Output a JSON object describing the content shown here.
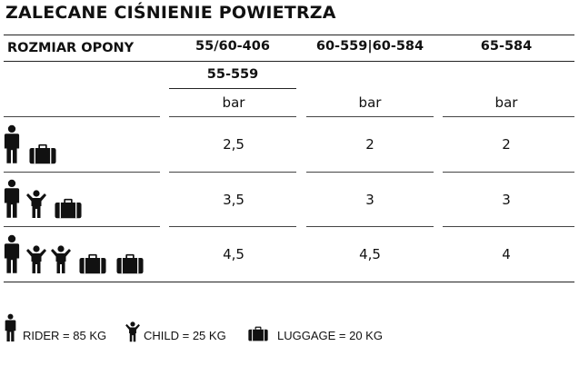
{
  "title": "ZALECANE CIŚNIENIE POWIETRZA",
  "headers": {
    "size": "ROZMIAR OPONY",
    "col1": "55/60-406",
    "col1b": "55-559",
    "col2": "60-559|60-584",
    "col3": "65-584"
  },
  "unit": "bar",
  "rows": [
    {
      "icons": [
        "rider-icon",
        "luggage-icon"
      ],
      "values": [
        "2,5",
        "2",
        "2"
      ]
    },
    {
      "icons": [
        "rider-icon",
        "child-icon",
        "luggage-icon"
      ],
      "values": [
        "3,5",
        "3",
        "3"
      ]
    },
    {
      "icons": [
        "rider-icon",
        "child-icon",
        "child-icon",
        "luggage-icon",
        "luggage-icon"
      ],
      "values": [
        "4,5",
        "4,5",
        "4"
      ]
    }
  ],
  "legend": {
    "rider": "RIDER = 85 KG",
    "child": "CHILD = 25 KG",
    "luggage": "LUGGAGE = 20 KG"
  }
}
